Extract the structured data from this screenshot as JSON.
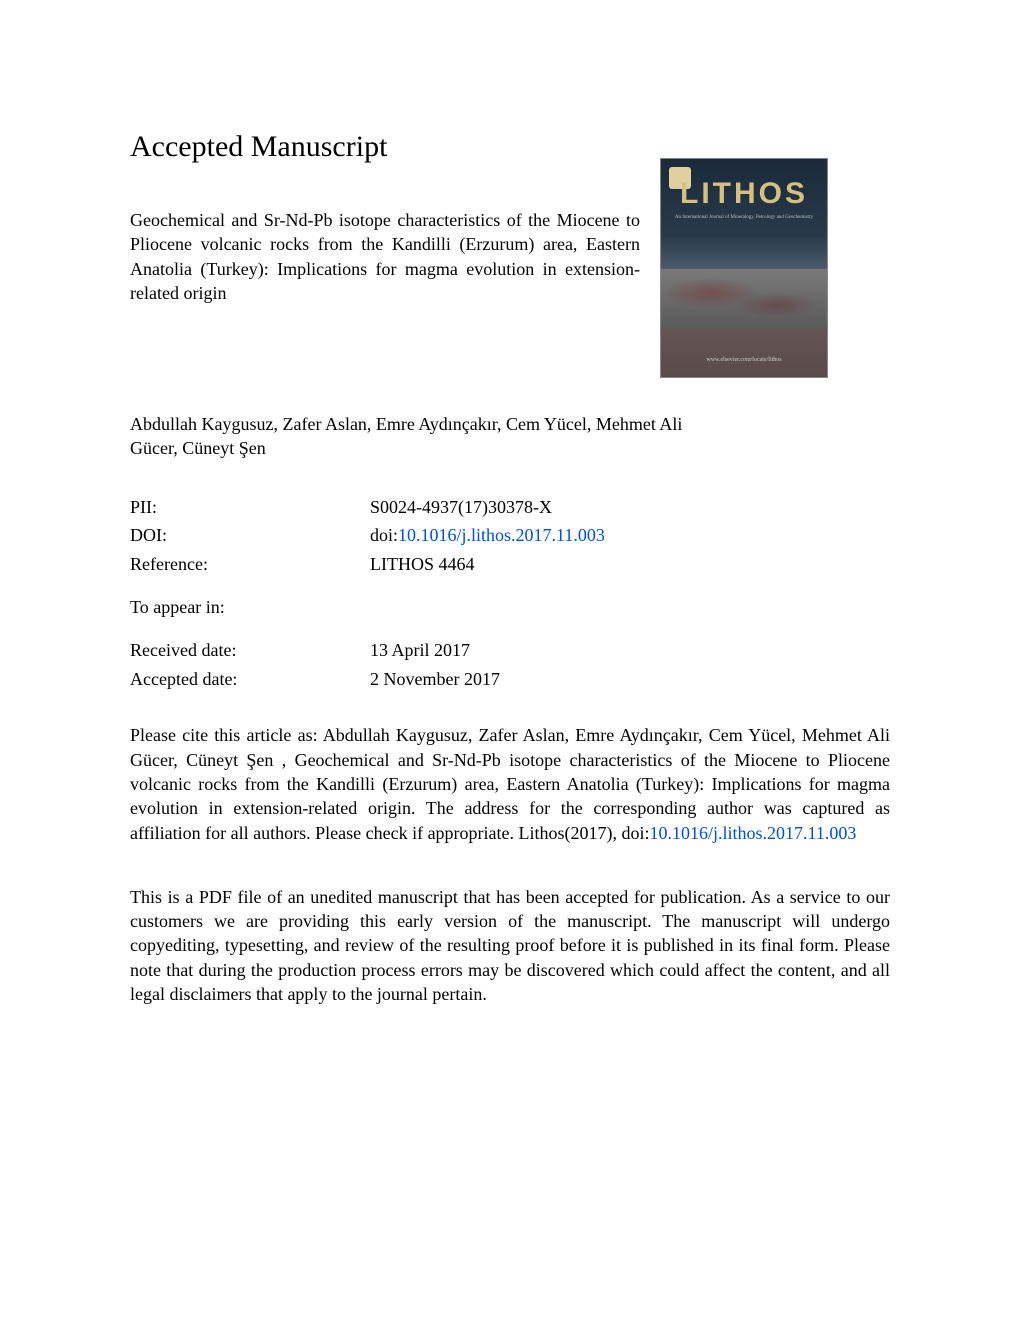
{
  "heading": "Accepted Manuscript",
  "title": "Geochemical and Sr-Nd-Pb isotope characteristics of the Miocene to Pliocene volcanic rocks from the Kandilli (Erzurum) area, Eastern Anatolia (Turkey): Implications for magma evolution in extension-related origin",
  "authors": "Abdullah Kaygusuz, Zafer Aslan, Emre Aydınçakır, Cem Yücel, Mehmet Ali Gücer, Cüneyt Şen",
  "cover": {
    "brand": "LITHOS",
    "subtitle": "An International Journal of Mineralogy, Petrology and Geochemistry",
    "url_text": "www.elsevier.com/locate/lithos"
  },
  "meta": {
    "pii_label": "PII:",
    "pii_value": "S0024-4937(17)30378-X",
    "doi_label": "DOI:",
    "doi_prefix": "doi:",
    "doi_link": "10.1016/j.lithos.2017.11.003",
    "ref_label": "Reference:",
    "ref_value": "LITHOS 4464",
    "appear_label": "To appear in:",
    "appear_value": "",
    "received_label": "Received date:",
    "received_value": "13 April 2017",
    "accepted_label": "Accepted date:",
    "accepted_value": "2 November 2017"
  },
  "cite_prefix": "Please cite this article as: Abdullah Kaygusuz, Zafer Aslan, Emre Aydınçakır, Cem Yücel, Mehmet Ali Gücer, Cüneyt Şen , Geochemical and Sr-Nd-Pb isotope characteristics of the Miocene to Pliocene volcanic rocks from the Kandilli (Erzurum) area, Eastern Anatolia (Turkey): Implications for magma evolution in extension-related origin. The address for the corresponding author was captured as affiliation for all authors. Please check if appropriate. Lithos(2017), doi:",
  "cite_link": "10.1016/j.lithos.2017.11.003",
  "disclaimer": "This is a PDF file of an unedited manuscript that has been accepted for publication. As a service to our customers we are providing this early version of the manuscript. The manuscript will undergo copyediting, typesetting, and review of the resulting proof before it is published in its final form. Please note that during the production process errors may be discovered which could affect the content, and all legal disclaimers that apply to the journal pertain.",
  "colors": {
    "text": "#000000",
    "link": "#0050c8",
    "background": "#ffffff"
  },
  "typography": {
    "heading_fontsize_pt": 22,
    "body_fontsize_pt": 13,
    "font_family": "serif"
  }
}
